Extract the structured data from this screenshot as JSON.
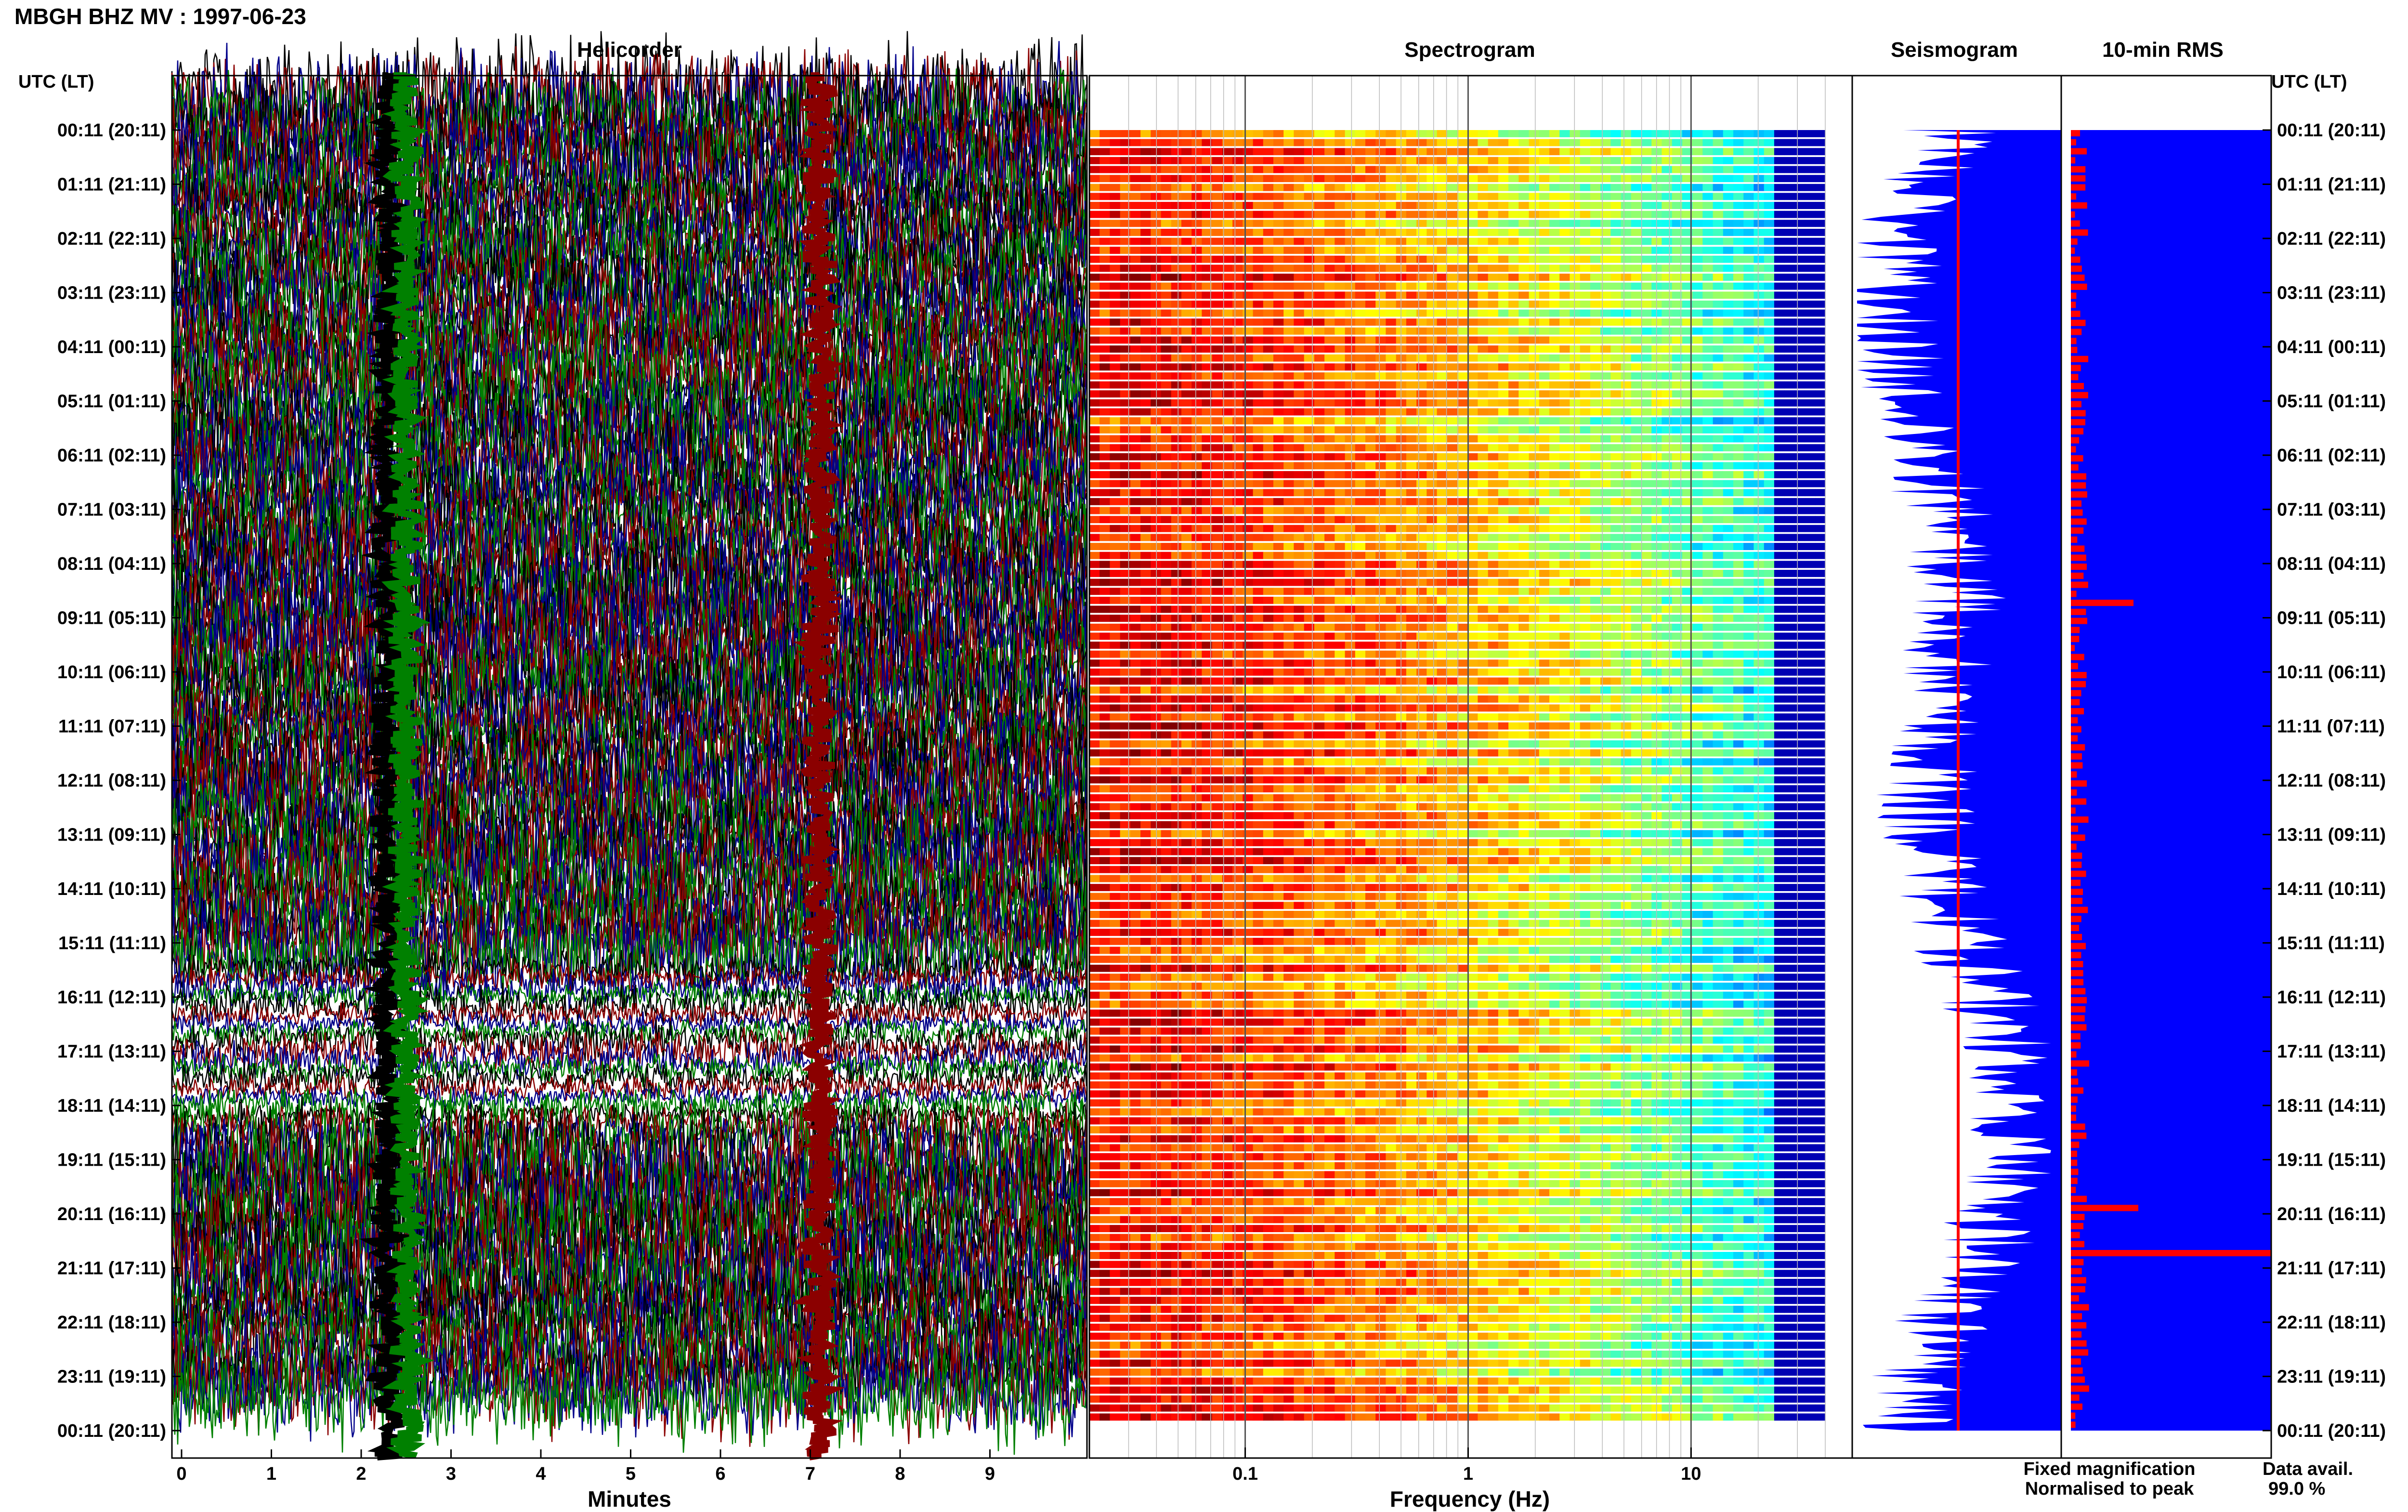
{
  "title": "MBGH BHZ MV : 1997-06-23",
  "panels": {
    "helicorder": "Helicorder",
    "spectrogram": "Spectrogram",
    "seismogram": "Seismogram",
    "rms": "10-min RMS"
  },
  "time_axis_label": "UTC (LT)",
  "row_labels": [
    "00:11 (20:11)",
    "01:11 (21:11)",
    "02:11 (22:11)",
    "03:11 (23:11)",
    "04:11 (00:11)",
    "05:11 (01:11)",
    "06:11 (02:11)",
    "07:11 (03:11)",
    "08:11 (04:11)",
    "09:11 (05:11)",
    "10:11 (06:11)",
    "11:11 (07:11)",
    "12:11 (08:11)",
    "13:11 (09:11)",
    "14:11 (10:11)",
    "15:11 (11:11)",
    "16:11 (12:11)",
    "17:11 (13:11)",
    "18:11 (14:11)",
    "19:11 (15:11)",
    "20:11 (16:11)",
    "21:11 (17:11)",
    "22:11 (18:11)",
    "23:11 (19:11)",
    "00:11 (20:11)"
  ],
  "helicorder_xlabel": "Minutes",
  "helicorder_ticks": [
    "0",
    "1",
    "2",
    "3",
    "4",
    "5",
    "6",
    "7",
    "8",
    "9"
  ],
  "spectrogram_xlabel": "Frequency (Hz)",
  "spectrogram_ticks": [
    "0.1",
    "1",
    "10"
  ],
  "legend": {
    "fixed": "Fixed magnification",
    "normalised": "Normalised to peak",
    "fixed_color": "#0000ff",
    "normalised_color": "#ff0000"
  },
  "data_avail_label": "Data avail.",
  "data_avail_value": "99.0 %",
  "colors": {
    "trace_black": "#000000",
    "trace_red": "#8b0000",
    "trace_blue": "#00008b",
    "trace_green": "#008000",
    "rms_fill": "#0000ff",
    "rms_bar": "#ff0000"
  },
  "chart_data": [
    {
      "type": "line",
      "title": "Helicorder",
      "xlabel": "Minutes",
      "xlim": [
        0,
        10
      ],
      "x_ticks": [
        0,
        1,
        2,
        3,
        4,
        5,
        6,
        7,
        8,
        9
      ],
      "rows": 144,
      "row_minutes": 10,
      "series_colors": [
        "#000000",
        "#8b0000",
        "#00008b",
        "#008000"
      ],
      "events_minute": [
        2.3,
        2.5,
        7.1
      ]
    },
    {
      "type": "heatmap",
      "title": "Spectrogram",
      "xlabel": "Frequency (Hz)",
      "xscale": "log",
      "xlim": [
        0.02,
        40
      ],
      "x_ticks": [
        0.1,
        1,
        10
      ],
      "colormap": "jet"
    },
    {
      "type": "area",
      "title": "Seismogram",
      "legend": [
        "Fixed magnification",
        "Normalised to peak"
      ]
    },
    {
      "type": "bar",
      "title": "10-min RMS",
      "peaks_utc": [
        "08:50",
        "19:56",
        "20:55"
      ]
    }
  ]
}
